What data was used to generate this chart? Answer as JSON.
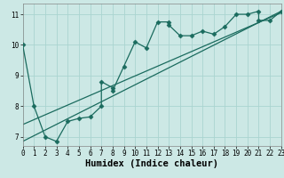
{
  "xlabel": "Humidex (Indice chaleur)",
  "bg_color": "#cce8e5",
  "line_color": "#1a6b5e",
  "grid_color": "#aad4d0",
  "scatter_x": [
    0,
    1,
    2,
    3,
    4,
    5,
    6,
    7,
    7,
    8,
    8,
    9,
    10,
    11,
    12,
    13,
    13,
    14,
    15,
    16,
    17,
    18,
    19,
    20,
    21,
    21,
    22,
    23
  ],
  "scatter_y": [
    10.0,
    8.0,
    7.0,
    6.85,
    7.5,
    7.6,
    7.65,
    8.0,
    8.8,
    8.6,
    8.5,
    9.3,
    10.1,
    9.9,
    10.75,
    10.75,
    10.65,
    10.3,
    10.3,
    10.45,
    10.35,
    10.6,
    11.0,
    11.0,
    11.1,
    10.8,
    10.8,
    11.1
  ],
  "line1_x": [
    0,
    23
  ],
  "line1_y": [
    6.85,
    11.1
  ],
  "line2_x": [
    0,
    23
  ],
  "line2_y": [
    7.4,
    11.05
  ],
  "xlim": [
    0,
    23
  ],
  "ylim": [
    6.7,
    11.35
  ],
  "xticks": [
    0,
    1,
    2,
    3,
    4,
    5,
    6,
    7,
    8,
    9,
    10,
    11,
    12,
    13,
    14,
    15,
    16,
    17,
    18,
    19,
    20,
    21,
    22,
    23
  ],
  "yticks": [
    7,
    8,
    9,
    10,
    11
  ],
  "tick_fontsize": 5.5,
  "label_fontsize": 7.5
}
